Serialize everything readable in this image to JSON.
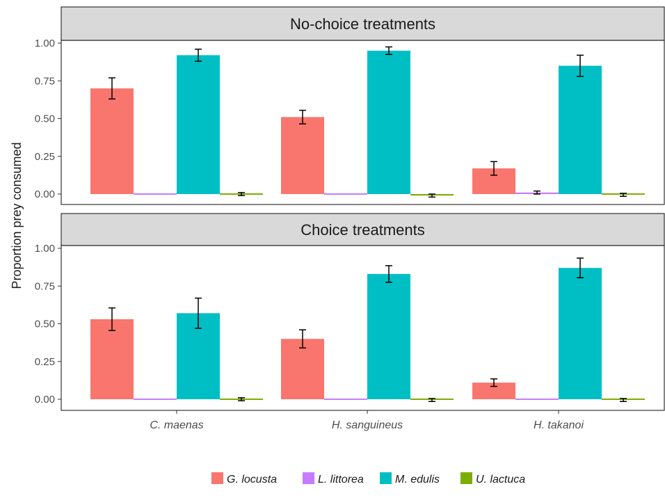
{
  "chart_data": {
    "type": "bar",
    "ylabel": "Proportion prey consumed",
    "ylim": [
      0,
      1.0
    ],
    "y_ticks": [
      "0.00",
      "0.25",
      "0.50",
      "0.75",
      "1.00"
    ],
    "categories": [
      "C. maenas",
      "H. sanguineus",
      "H. takanoi"
    ],
    "grid": false,
    "legend_position": "bottom",
    "legend": [
      {
        "name": "G. locusta",
        "color": "#f8766d"
      },
      {
        "name": "L. littorea",
        "color": "#c77cff"
      },
      {
        "name": "M. edulis",
        "color": "#00bfc4"
      },
      {
        "name": "U. lactuca",
        "color": "#7cae00"
      }
    ],
    "panels": [
      {
        "title": "No-choice treatments",
        "series": [
          {
            "name": "G. locusta",
            "values": [
              0.7,
              0.51,
              0.17
            ],
            "errors": [
              0.07,
              0.045,
              0.045
            ]
          },
          {
            "name": "L. littorea",
            "values": [
              0.0,
              0.0,
              0.01
            ],
            "errors": [
              0.0,
              0.0,
              0.01
            ]
          },
          {
            "name": "M. edulis",
            "values": [
              0.92,
              0.95,
              0.85
            ],
            "errors": [
              0.04,
              0.025,
              0.07
            ]
          },
          {
            "name": "U. lactuca",
            "values": [
              0.0,
              -0.01,
              -0.005
            ],
            "errors": [
              0.01,
              0.01,
              0.01
            ]
          }
        ]
      },
      {
        "title": "Choice treatments",
        "series": [
          {
            "name": "G. locusta",
            "values": [
              0.53,
              0.4,
              0.11
            ],
            "errors": [
              0.075,
              0.06,
              0.025
            ]
          },
          {
            "name": "L. littorea",
            "values": [
              0.0,
              0.0,
              0.0
            ],
            "errors": [
              0.0,
              0.0,
              0.0
            ]
          },
          {
            "name": "M. edulis",
            "values": [
              0.57,
              0.83,
              0.87
            ],
            "errors": [
              0.1,
              0.055,
              0.065
            ]
          },
          {
            "name": "U. lactuca",
            "values": [
              0.0,
              -0.005,
              -0.005
            ],
            "errors": [
              0.01,
              0.01,
              0.01
            ]
          }
        ]
      }
    ]
  }
}
